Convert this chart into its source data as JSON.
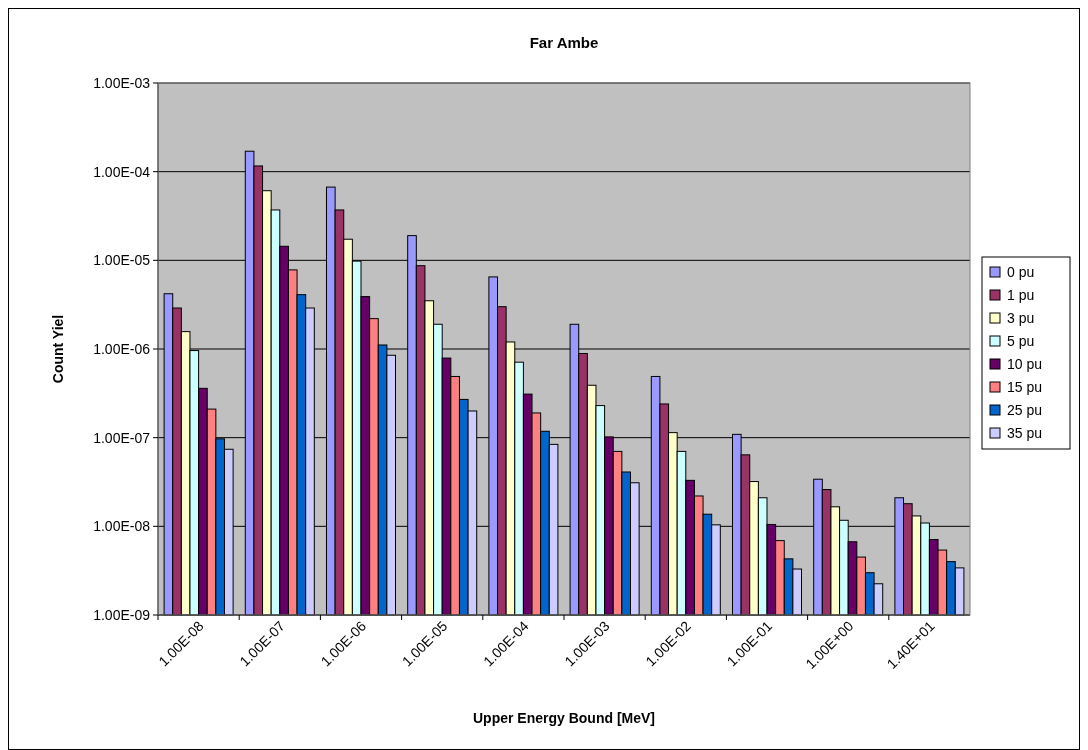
{
  "chart_data": {
    "type": "bar",
    "title": "Far Ambe",
    "xlabel": "Upper Energy Bound [MeV]",
    "ylabel": "Count Yiel",
    "log": "y",
    "grid": "y",
    "legend": "right",
    "categories": [
      "1.00E-08",
      "1.00E-07",
      "1.00E-06",
      "1.00E-05",
      "1.00E-04",
      "1.00E-03",
      "1.00E-02",
      "1.00E-01",
      "1.00E+00",
      "1.40E+01"
    ],
    "ylim": [
      1e-09,
      0.001
    ],
    "yticks": [
      {
        "value": 1e-09,
        "label": "1.00E-09"
      },
      {
        "value": 1e-08,
        "label": "1.00E-08"
      },
      {
        "value": 1e-07,
        "label": "1.00E-07"
      },
      {
        "value": 1e-06,
        "label": "1.00E-06"
      },
      {
        "value": 1e-05,
        "label": "1.00E-05"
      },
      {
        "value": 0.0001,
        "label": "1.00E-04"
      },
      {
        "value": 0.001,
        "label": "1.00E-03"
      }
    ],
    "series": [
      {
        "name": "0 pu",
        "color": "#9999ff",
        "values": [
          4.2e-06,
          0.00017,
          6.7e-05,
          1.9e-05,
          6.5e-06,
          1.9e-06,
          4.9e-07,
          1.09e-07,
          3.4e-08,
          2.1e-08
        ]
      },
      {
        "name": "1 pu",
        "color": "#993366",
        "values": [
          2.9e-06,
          0.000116,
          3.7e-05,
          8.7e-06,
          3e-06,
          8.9e-07,
          2.4e-07,
          6.4e-08,
          2.6e-08,
          1.8e-08
        ]
      },
      {
        "name": "3 pu",
        "color": "#ffffcc",
        "values": [
          1.57e-06,
          6.1e-05,
          1.73e-05,
          3.5e-06,
          1.2e-06,
          3.9e-07,
          1.14e-07,
          3.2e-08,
          1.66e-08,
          1.31e-08
        ]
      },
      {
        "name": "5 pu",
        "color": "#ccffff",
        "values": [
          9.6e-07,
          3.7e-05,
          9.8e-06,
          1.9e-06,
          7.1e-07,
          2.3e-07,
          7e-08,
          2.1e-08,
          1.17e-08,
          1.09e-08
        ]
      },
      {
        "name": "10 pu",
        "color": "#660066",
        "values": [
          3.6e-07,
          1.44e-05,
          3.9e-06,
          7.9e-07,
          3.1e-07,
          1.02e-07,
          3.3e-08,
          1.05e-08,
          6.7e-09,
          7.1e-09
        ]
      },
      {
        "name": "15 pu",
        "color": "#ff8080",
        "values": [
          2.1e-07,
          7.8e-06,
          2.2e-06,
          4.9e-07,
          1.9e-07,
          7e-08,
          2.2e-08,
          6.9e-09,
          4.5e-09,
          5.4e-09
        ]
      },
      {
        "name": "25 pu",
        "color": "#0066cc",
        "values": [
          9.7e-08,
          4.1e-06,
          1.11e-06,
          2.7e-07,
          1.18e-07,
          4.1e-08,
          1.37e-08,
          4.3e-09,
          3e-09,
          4e-09
        ]
      },
      {
        "name": "35 pu",
        "color": "#ccccff",
        "values": [
          7.4e-08,
          2.9e-06,
          8.5e-07,
          2e-07,
          8.4e-08,
          3.1e-08,
          1.04e-08,
          3.3e-09,
          2.25e-09,
          3.4e-09
        ]
      }
    ]
  }
}
